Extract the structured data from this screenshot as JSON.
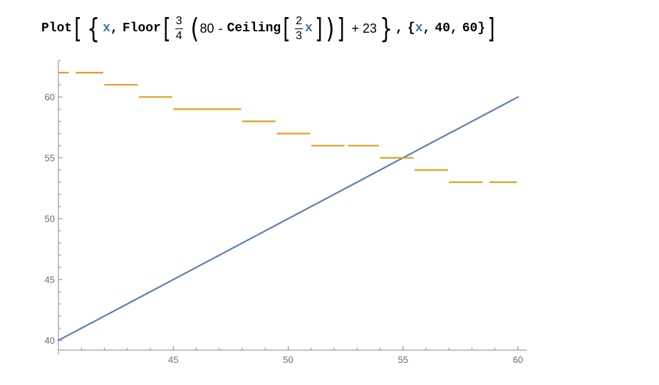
{
  "input": {
    "plot_fn": "Plot",
    "var_x": "x",
    "comma": ",",
    "floor_fn": "Floor",
    "frac1_num": "3",
    "frac1_den": "4",
    "eighty": "80",
    "minus": "-",
    "ceiling_fn": "Ceiling",
    "frac2_num": "2",
    "frac2_den": "3",
    "plus_const": "+ 23",
    "range_open": "{",
    "range_start": "40",
    "range_end": "60",
    "range_close": "}"
  },
  "colors": {
    "line_series": "#5b7fb2",
    "step_series": "#e39e20",
    "axis": "#8a8a8a",
    "tick_label": "#6b6b6b"
  },
  "chart_data": {
    "type": "line",
    "title": "",
    "xlabel": "",
    "ylabel": "",
    "xlim": [
      40,
      60
    ],
    "ylim": [
      39.2,
      63
    ],
    "x_ticks": [
      45,
      50,
      55,
      60
    ],
    "y_ticks": [
      40,
      45,
      50,
      55,
      60
    ],
    "x_tick_labels": [
      "45",
      "50",
      "55",
      "60"
    ],
    "y_tick_labels": [
      "40",
      "45",
      "50",
      "55",
      "60"
    ],
    "grid": false,
    "series": [
      {
        "kind": "line",
        "points": [
          [
            40,
            40
          ],
          [
            60,
            60
          ]
        ]
      },
      {
        "kind": "step",
        "segments": [
          {
            "x0": 40.0,
            "x1": 40.5,
            "y": 62
          },
          {
            "x0": 40.75,
            "x1": 42.0,
            "y": 62
          },
          {
            "x0": 42.0,
            "x1": 43.5,
            "y": 61
          },
          {
            "x0": 43.5,
            "x1": 45.0,
            "y": 60
          },
          {
            "x0": 45.0,
            "x1": 48.0,
            "y": 59
          },
          {
            "x0": 48.0,
            "x1": 49.5,
            "y": 58
          },
          {
            "x0": 49.5,
            "x1": 51.0,
            "y": 57
          },
          {
            "x0": 51.0,
            "x1": 52.5,
            "y": 56
          },
          {
            "x0": 52.6,
            "x1": 54.0,
            "y": 56
          },
          {
            "x0": 54.0,
            "x1": 55.5,
            "y": 55
          },
          {
            "x0": 55.5,
            "x1": 57.0,
            "y": 54
          },
          {
            "x0": 57.0,
            "x1": 58.5,
            "y": 53
          },
          {
            "x0": 58.75,
            "x1": 60.0,
            "y": 53
          }
        ]
      }
    ]
  }
}
